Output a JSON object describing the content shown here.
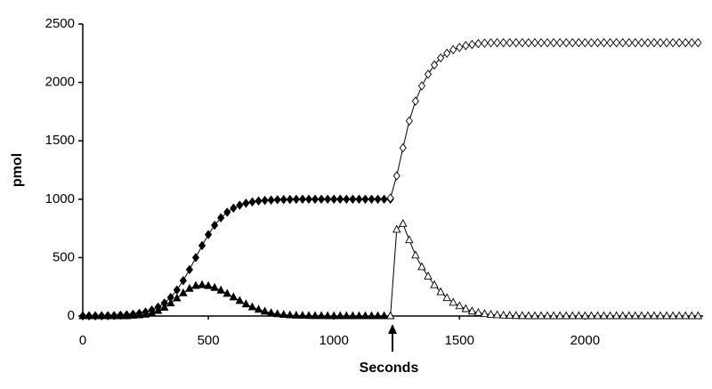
{
  "chart_data": {
    "type": "line",
    "x_label": "Seconds",
    "y_label": "pmol",
    "x": [
      0,
      25,
      50,
      75,
      100,
      125,
      150,
      175,
      200,
      225,
      250,
      275,
      300,
      325,
      350,
      375,
      400,
      425,
      450,
      475,
      500,
      525,
      550,
      575,
      600,
      625,
      650,
      675,
      700,
      725,
      750,
      775,
      800,
      825,
      850,
      875,
      900,
      925,
      950,
      975,
      1000,
      1025,
      1050,
      1075,
      1100,
      1125,
      1150,
      1175,
      1200,
      1225,
      1250,
      1275,
      1300,
      1325,
      1350,
      1375,
      1400,
      1425,
      1450,
      1475,
      1500,
      1525,
      1550,
      1575,
      1600,
      1625,
      1650,
      1675,
      1700,
      1725,
      1750,
      1775,
      1800,
      1825,
      1850,
      1875,
      1900,
      1925,
      1950,
      1975,
      2000,
      2025,
      2050,
      2075,
      2100,
      2125,
      2150,
      2175,
      2200,
      2225,
      2250,
      2275,
      2300,
      2325,
      2350,
      2375,
      2400,
      2425,
      2450
    ],
    "series": [
      {
        "marker": "diamond",
        "filled": true,
        "color": "#000000",
        "values": [
          1,
          1,
          1,
          2,
          3,
          4,
          7,
          10,
          15,
          23,
          34,
          51,
          76,
          111,
          159,
          223,
          303,
          397,
          500,
          603,
          697,
          777,
          841,
          889,
          924,
          949,
          966,
          977,
          985,
          990,
          993,
          996,
          997,
          998,
          999,
          1000,
          1000,
          1000,
          1000,
          1000,
          1000,
          1000,
          1000,
          1000,
          1000,
          1000,
          1000,
          1000,
          1000,
          1000,
          null,
          null,
          null,
          null,
          null,
          null,
          null,
          null,
          null,
          null,
          null,
          null,
          null,
          null,
          null,
          null,
          null,
          null,
          null,
          null,
          null,
          null,
          null,
          null,
          null,
          null,
          null,
          null,
          null,
          null,
          null,
          null,
          null,
          null,
          null,
          null,
          null,
          null,
          null,
          null,
          null,
          null,
          null,
          null,
          null,
          null,
          null,
          null,
          null
        ]
      },
      {
        "marker": "triangle",
        "filled": true,
        "color": "#000000",
        "values": [
          0,
          0,
          0,
          0,
          0,
          0,
          0,
          0,
          3,
          7,
          13,
          25,
          45,
          72,
          109,
          152,
          196,
          234,
          259,
          265,
          258,
          242,
          219,
          191,
          161,
          130,
          101,
          76,
          55,
          39,
          26,
          17,
          11,
          7,
          4,
          3,
          2,
          1,
          1,
          0,
          0,
          0,
          0,
          0,
          0,
          0,
          0,
          0,
          0,
          0,
          null,
          null,
          null,
          null,
          null,
          null,
          null,
          null,
          null,
          null,
          null,
          null,
          null,
          null,
          null,
          null,
          null,
          null,
          null,
          null,
          null,
          null,
          null,
          null,
          null,
          null,
          null,
          null,
          null,
          null,
          null,
          null,
          null,
          null,
          null,
          null,
          null,
          null,
          null,
          null,
          null,
          null,
          null,
          null,
          null,
          null,
          null,
          null,
          null
        ]
      },
      {
        "marker": "diamond",
        "filled": false,
        "color": "#000000",
        "values": [
          null,
          null,
          null,
          null,
          null,
          null,
          null,
          null,
          null,
          null,
          null,
          null,
          null,
          null,
          null,
          null,
          null,
          null,
          null,
          null,
          null,
          null,
          null,
          null,
          null,
          null,
          null,
          null,
          null,
          null,
          null,
          null,
          null,
          null,
          null,
          null,
          null,
          null,
          null,
          null,
          null,
          null,
          null,
          null,
          null,
          null,
          null,
          null,
          null,
          1010,
          1200,
          1440,
          1670,
          1840,
          1970,
          2070,
          2150,
          2210,
          2250,
          2280,
          2300,
          2315,
          2325,
          2332,
          2336,
          2339,
          2340,
          2340,
          2340,
          2340,
          2340,
          2340,
          2340,
          2340,
          2340,
          2340,
          2340,
          2340,
          2340,
          2340,
          2340,
          2340,
          2340,
          2340,
          2340,
          2340,
          2340,
          2340,
          2340,
          2340,
          2340,
          2340,
          2340,
          2340,
          2340,
          2340,
          2340,
          2340,
          2340
        ]
      },
      {
        "marker": "triangle",
        "filled": false,
        "color": "#000000",
        "values": [
          null,
          null,
          null,
          null,
          null,
          null,
          null,
          null,
          null,
          null,
          null,
          null,
          null,
          null,
          null,
          null,
          null,
          null,
          null,
          null,
          null,
          null,
          null,
          null,
          null,
          null,
          null,
          null,
          null,
          null,
          null,
          null,
          null,
          null,
          null,
          null,
          null,
          null,
          null,
          null,
          null,
          null,
          null,
          null,
          null,
          null,
          null,
          null,
          null,
          0,
          740,
          790,
          650,
          520,
          420,
          340,
          265,
          205,
          155,
          115,
          85,
          60,
          40,
          28,
          18,
          12,
          8,
          5,
          3,
          2,
          1,
          0,
          0,
          0,
          0,
          0,
          0,
          0,
          0,
          0,
          0,
          0,
          0,
          0,
          0,
          0,
          0,
          0,
          0,
          0,
          0,
          0,
          0,
          0,
          0,
          0,
          0,
          0,
          0
        ]
      }
    ],
    "xlim": [
      0,
      2470
    ],
    "xticks": [
      0,
      500,
      1000,
      1500,
      2000
    ],
    "ylim": [
      0,
      2500
    ],
    "yticks": [
      0,
      500,
      1000,
      1500,
      2000,
      2500
    ],
    "grid": false
  }
}
